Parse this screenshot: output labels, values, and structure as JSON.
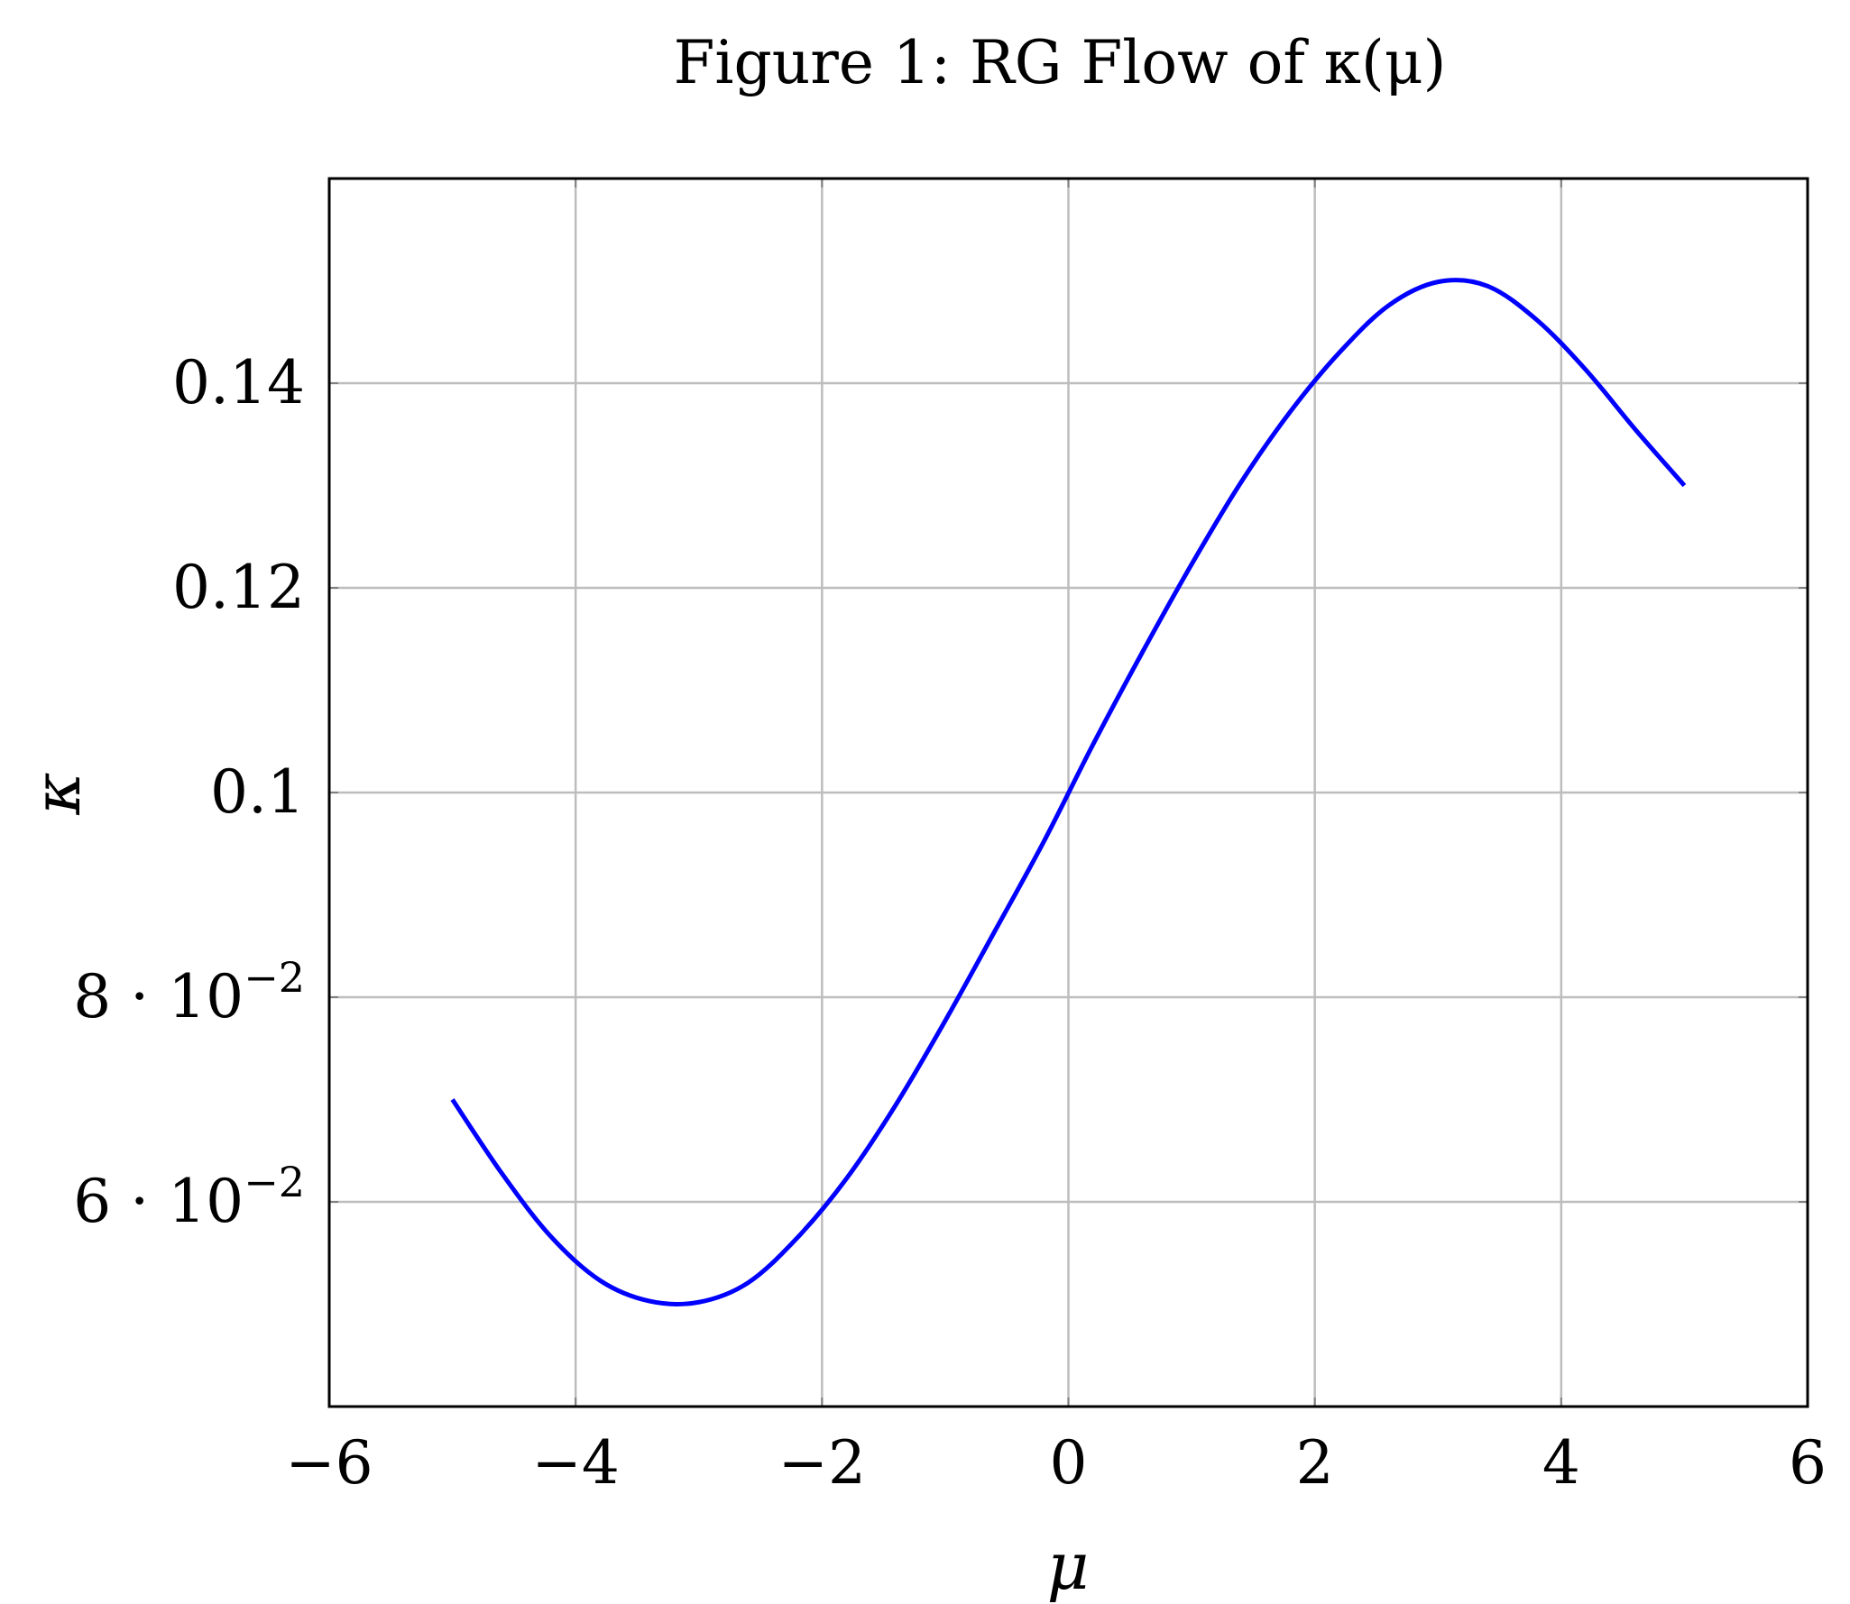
{
  "chart_data": {
    "type": "line",
    "title": "Figure 1: RG Flow of κ(μ)",
    "xlabel": "μ",
    "ylabel": "κ",
    "xlim": [
      -6,
      6
    ],
    "ylim": [
      0.04,
      0.16
    ],
    "x_ticks": [
      -6,
      -4,
      -2,
      0,
      2,
      4,
      6
    ],
    "x_tick_labels": [
      "−6",
      "−4",
      "−2",
      "0",
      "2",
      "4",
      "6"
    ],
    "y_ticks": [
      {
        "value": 0.06,
        "mantissa": "6 · 10",
        "exponent": "−2"
      },
      {
        "value": 0.08,
        "mantissa": "8 · 10",
        "exponent": "−2"
      },
      {
        "value": 0.1,
        "mantissa": "0.1",
        "exponent": ""
      },
      {
        "value": 0.12,
        "mantissa": "0.12",
        "exponent": ""
      },
      {
        "value": 0.14,
        "mantissa": "0.14",
        "exponent": ""
      }
    ],
    "grid": true,
    "series": [
      {
        "color": "#0000ff",
        "x": [
          -5.0,
          -4.6,
          -4.2,
          -3.8,
          -3.4,
          -3.0,
          -2.6,
          -2.2,
          -1.8,
          -1.4,
          -1.0,
          -0.6,
          -0.2,
          0.2,
          0.6,
          1.0,
          1.4,
          1.8,
          2.2,
          2.6,
          3.0,
          3.4,
          3.8,
          4.2,
          4.6,
          5.0
        ],
        "y": [
          0.07,
          0.0628,
          0.0566,
          0.0523,
          0.0503,
          0.0502,
          0.0521,
          0.0565,
          0.0623,
          0.0695,
          0.0777,
          0.0864,
          0.0952,
          0.1047,
          0.1137,
          0.1223,
          0.1303,
          0.1372,
          0.143,
          0.1476,
          0.1499,
          0.1495,
          0.1462,
          0.1413,
          0.1355,
          0.13
        ]
      }
    ]
  }
}
